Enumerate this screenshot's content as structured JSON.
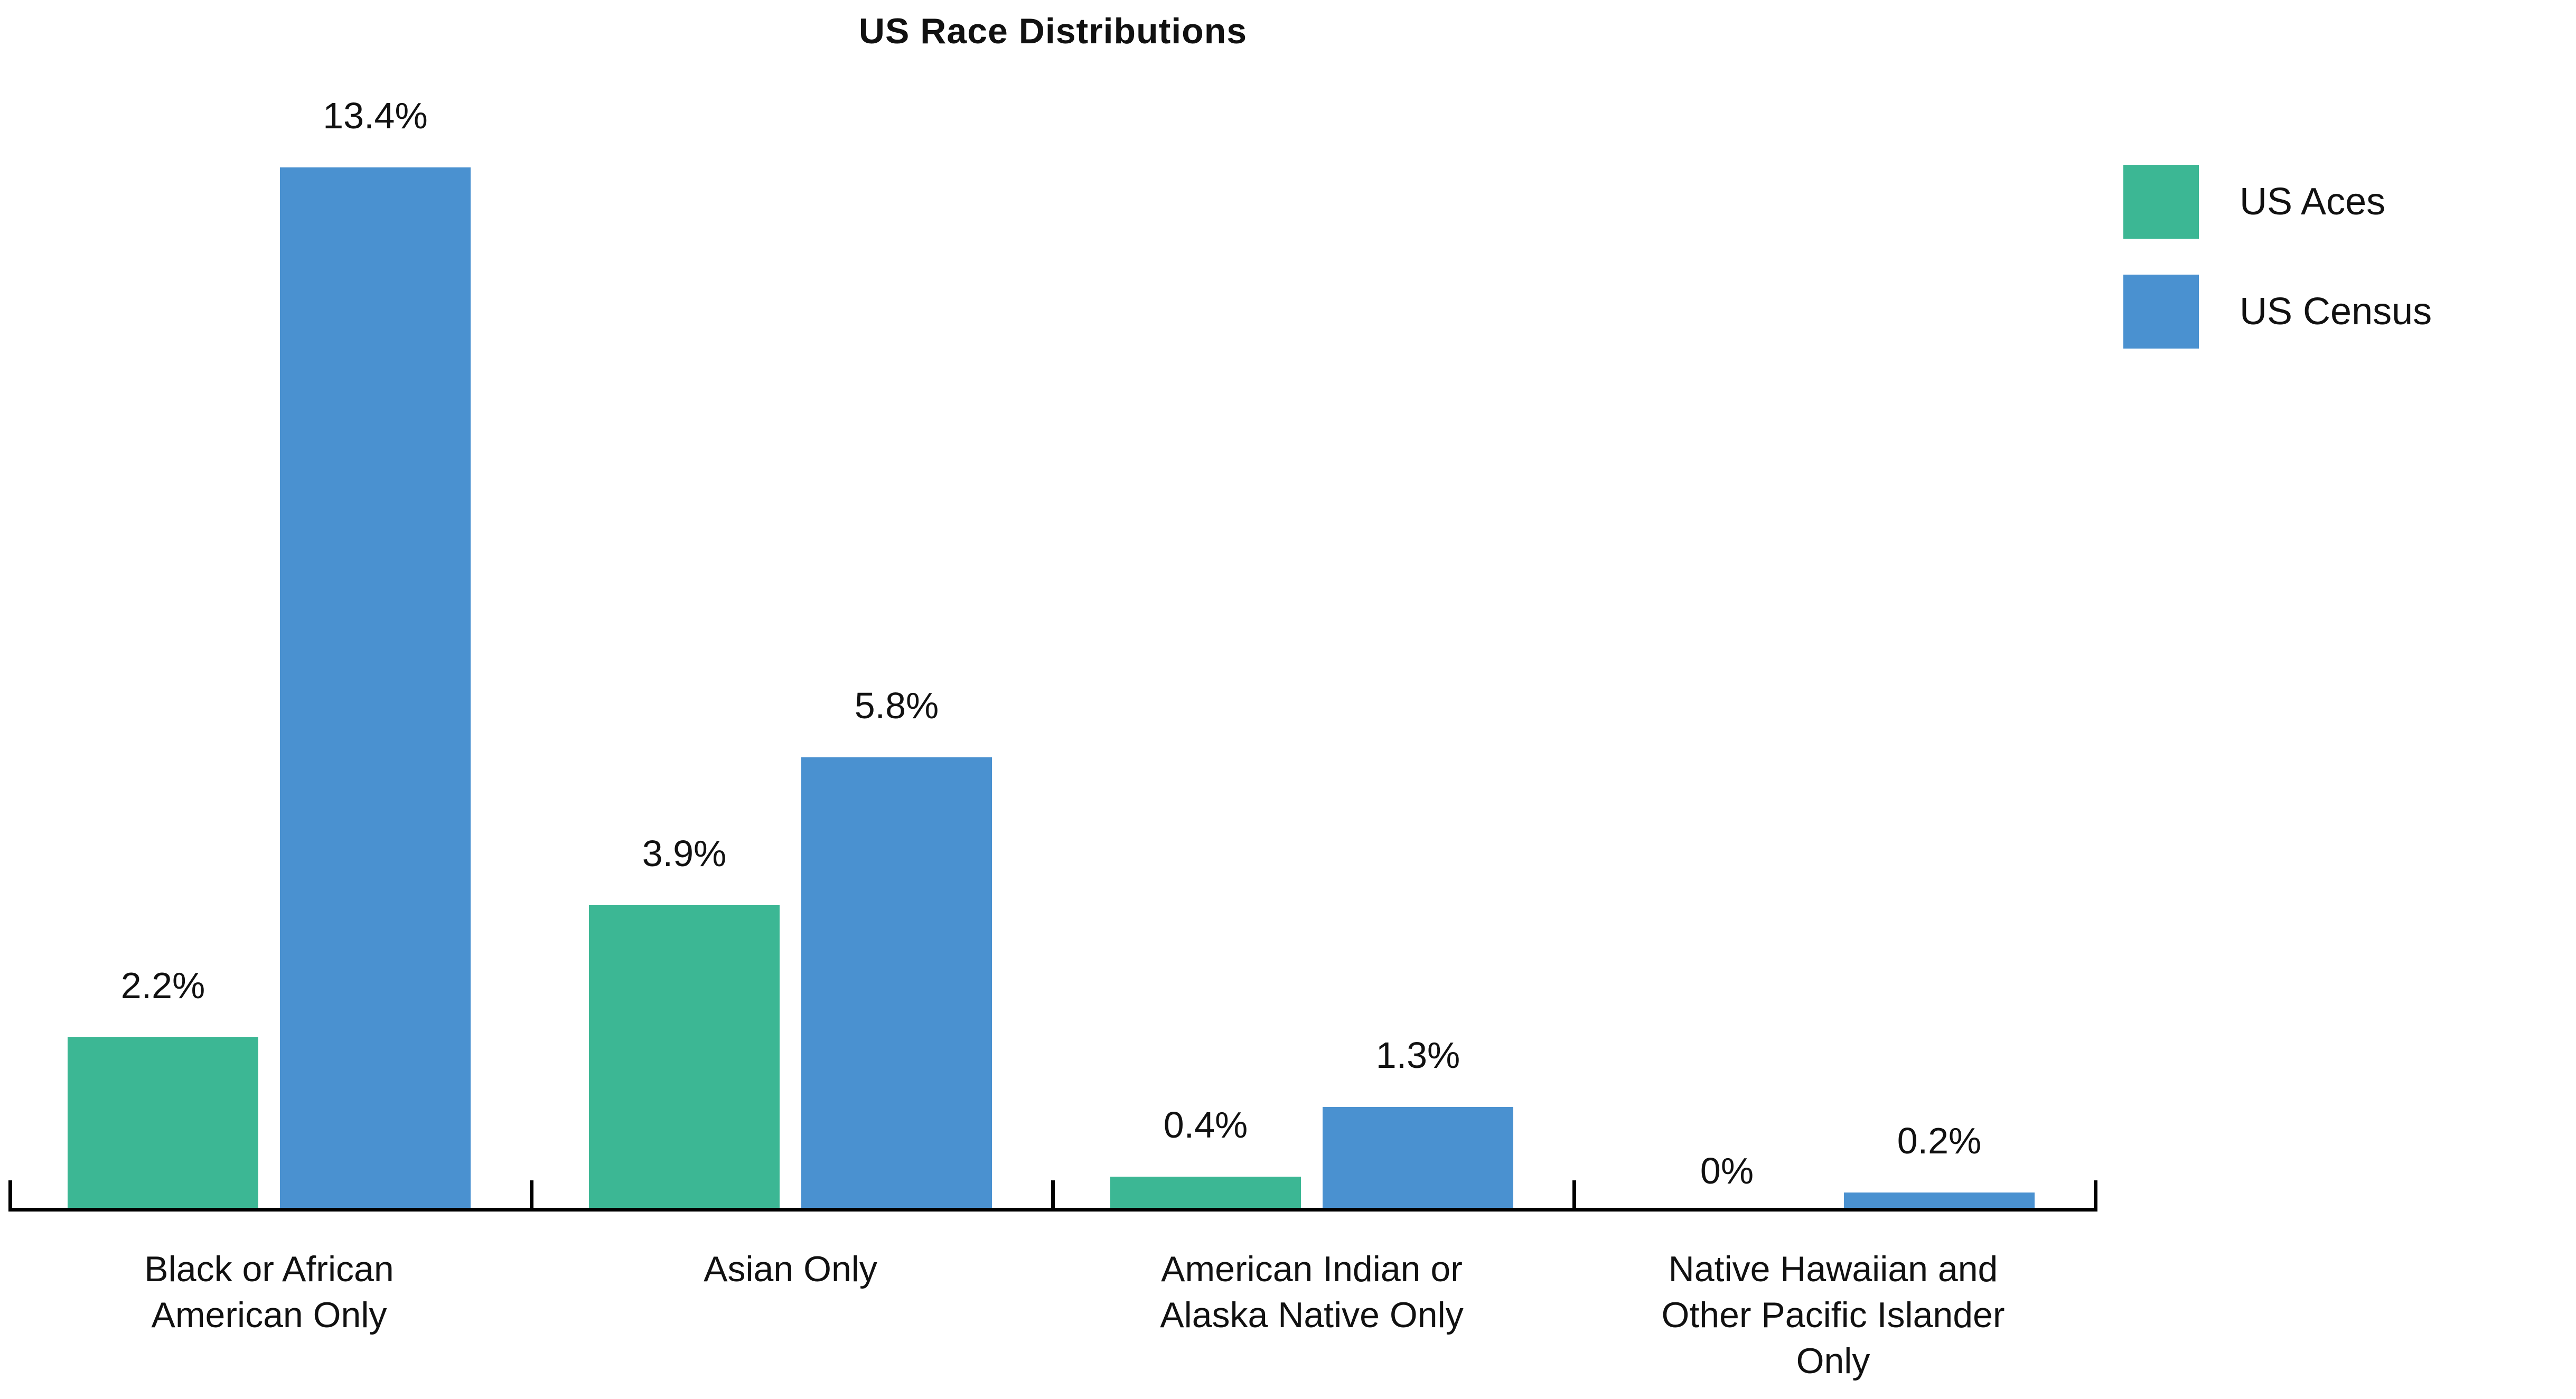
{
  "page": {
    "background": "#FFFFFF",
    "text_color": "#111111",
    "axis_color": "#000000"
  },
  "chart_data": {
    "type": "bar",
    "title": "US Race Distributions",
    "xlabel": "",
    "ylabel": "",
    "unit": "%",
    "ylim": [
      0,
      14
    ],
    "grid": false,
    "legend_position": "top-right",
    "categories": [
      {
        "label": "Black or African American Only",
        "lines": [
          "Black or African",
          "American Only"
        ]
      },
      {
        "label": "Asian Only",
        "lines": [
          "Asian Only"
        ]
      },
      {
        "label": "American Indian or Alaska Native Only",
        "lines": [
          "American Indian or",
          "Alaska Native Only"
        ]
      },
      {
        "label": "Native Hawaiian and Other Pacific Islander Only",
        "lines": [
          "Native Hawaiian and",
          "Other Pacific Islander",
          "Only"
        ]
      }
    ],
    "series": [
      {
        "name": "US Aces",
        "color": "#3CB794",
        "values": [
          2.2,
          3.9,
          0.4,
          0
        ],
        "value_labels": [
          "2.2%",
          "3.9%",
          "0.4%",
          "0%"
        ]
      },
      {
        "name": "US Census",
        "color": "#4A91D0",
        "values": [
          13.4,
          5.8,
          1.3,
          0.2
        ],
        "value_labels": [
          "13.4%",
          "5.8%",
          "1.3%",
          "0.2%"
        ]
      }
    ]
  }
}
